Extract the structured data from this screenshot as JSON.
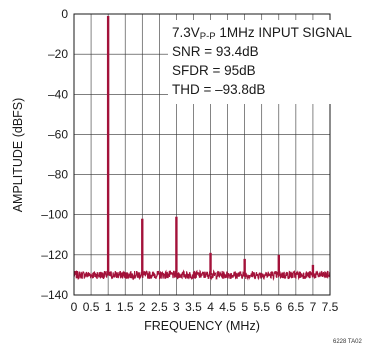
{
  "chart_data": {
    "type": "line",
    "title": "",
    "xlabel": "FREQUENCY (MHz)",
    "ylabel": "AMPLITUDE (dBFS)",
    "xlim": [
      0,
      7.5
    ],
    "ylim": [
      -140,
      0
    ],
    "x_ticks": [
      "0",
      "0.5",
      "1",
      "1.5",
      "2",
      "2.5",
      "3",
      "3.5",
      "4",
      "4.5",
      "5",
      "5.5",
      "6",
      "6.5",
      "7",
      "7.5"
    ],
    "y_ticks": [
      "0",
      "–20",
      "–40",
      "–60",
      "–80",
      "–100",
      "–120",
      "–140"
    ],
    "grid": true,
    "series_color": "#a3123a",
    "noise_floor_dbfs": -130,
    "peaks": [
      {
        "x": 1.0,
        "y": -1
      },
      {
        "x": 2.0,
        "y": -102
      },
      {
        "x": 3.0,
        "y": -101
      },
      {
        "x": 4.0,
        "y": -119
      },
      {
        "x": 5.0,
        "y": -122
      },
      {
        "x": 6.0,
        "y": -120
      },
      {
        "x": 7.0,
        "y": -125
      }
    ],
    "annotations": {
      "line1_pre": "7.3V",
      "line1_sub": "P-P",
      "line1_post": " 1MHz INPUT SIGNAL",
      "line2": "SNR = 93.4dB",
      "line3": "SFDR = 95dB",
      "line4": "THD = –93.8dB"
    },
    "figure_code": "6228 TA02"
  }
}
